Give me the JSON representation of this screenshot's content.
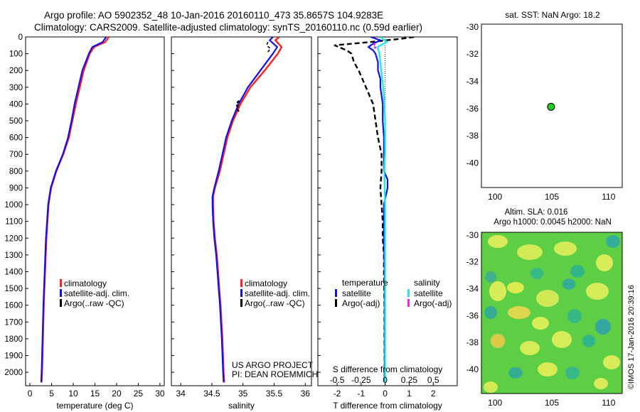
{
  "header": {
    "line1": "Argo profile: AO 5902352_48 10-Jan-2016 20160110_473 35.8657S 104.9283E",
    "line2": "Climatology: CARS2009. Satellite-adjusted climatology: synTS_20160110.nc (0.59d earlier)"
  },
  "colors": {
    "climatology": "#ff2020",
    "satellite": "#1010ee",
    "argo": "#000000",
    "sal_satellite": "#22e8f0",
    "sal_argo": "#ee22ee",
    "float_marker": "#22cc22"
  },
  "watermark": "©IMOS 17-Jan-2016 20:39:16",
  "chart_data": [
    {
      "id": "temperature",
      "type": "line",
      "xlabel": "temperature (deg C)",
      "ylabel": "",
      "xlim": [
        -1,
        31
      ],
      "ylim": [
        2080,
        0
      ],
      "xticks": [
        0,
        5,
        10,
        15,
        20,
        25,
        30
      ],
      "yticks": [
        0,
        100,
        200,
        300,
        400,
        500,
        600,
        700,
        800,
        900,
        1000,
        1100,
        1200,
        1300,
        1400,
        1500,
        1600,
        1700,
        1800,
        1900,
        2000
      ],
      "legend": [
        "climatology",
        "satellite-adj. clim.",
        "Argo(..raw -QC)"
      ],
      "series": [
        {
          "name": "climatology",
          "depth": [
            0,
            30,
            60,
            100,
            200,
            300,
            400,
            500,
            600,
            700,
            800,
            900,
            1000,
            1200,
            1400,
            1600,
            1800,
            2000,
            2060
          ],
          "values": [
            18.2,
            17.4,
            14.8,
            13.8,
            12.4,
            11.5,
            10.6,
            9.8,
            9.0,
            7.7,
            6.1,
            4.9,
            4.3,
            3.8,
            3.5,
            3.2,
            3.0,
            2.8,
            2.7
          ]
        },
        {
          "name": "satellite-adj. clim.",
          "depth": [
            0,
            30,
            60,
            100,
            200,
            300,
            400,
            500,
            600,
            700,
            800,
            900,
            1000,
            1200,
            1400,
            1600,
            1800,
            2000,
            2060
          ],
          "values": [
            17.6,
            16.8,
            14.4,
            13.6,
            12.1,
            11.2,
            10.3,
            9.6,
            8.8,
            7.6,
            6.0,
            4.8,
            4.2,
            3.7,
            3.4,
            3.1,
            2.9,
            2.7,
            2.6
          ]
        }
      ]
    },
    {
      "id": "salinity",
      "type": "line",
      "xlabel": "salinity",
      "xlim": [
        33.85,
        36.1
      ],
      "ylim": [
        2080,
        0
      ],
      "xticks": [
        34,
        34.5,
        35,
        35.5,
        36
      ],
      "legend": [
        "climatology",
        "satellite-adj. clim.",
        "Argo(..raw -QC)"
      ],
      "annotation": [
        "US ARGO PROJECT",
        "PI: DEAN ROEMMICH"
      ],
      "series": [
        {
          "name": "climatology",
          "depth": [
            0,
            20,
            60,
            100,
            200,
            300,
            400,
            500,
            600,
            700,
            800,
            900,
            950,
            1000,
            1100,
            1200,
            1300,
            1400,
            1500,
            1600,
            1800,
            2000,
            2060
          ],
          "values": [
            35.58,
            35.52,
            35.62,
            35.56,
            35.35,
            35.12,
            34.96,
            34.84,
            34.75,
            34.69,
            34.63,
            34.55,
            34.52,
            34.52,
            34.53,
            34.55,
            34.58,
            34.6,
            34.62,
            34.64,
            34.67,
            34.69,
            34.7
          ]
        },
        {
          "name": "satellite-adj. clim.",
          "depth": [
            0,
            20,
            60,
            100,
            200,
            300,
            400,
            500,
            600,
            700,
            800,
            900,
            950,
            1000,
            1100,
            1200,
            1300,
            1400,
            1500,
            1600,
            1800,
            2000,
            2060
          ],
          "values": [
            35.48,
            35.43,
            35.55,
            35.48,
            35.28,
            35.08,
            34.93,
            34.82,
            34.73,
            34.67,
            34.61,
            34.54,
            34.51,
            34.51,
            34.52,
            34.54,
            34.57,
            34.59,
            34.61,
            34.63,
            34.66,
            34.68,
            34.69
          ]
        },
        {
          "name": "Argo",
          "depth": [
            380,
            390,
            400,
            410,
            420,
            430,
            440,
            450
          ],
          "values": [
            34.94,
            34.91,
            34.93,
            34.9,
            34.92,
            34.9,
            34.93,
            34.91
          ]
        },
        {
          "name": "Argo-top",
          "depth": [
            30,
            50,
            70,
            90
          ],
          "values": [
            35.4,
            35.38,
            35.44,
            35.4
          ]
        }
      ]
    },
    {
      "id": "difference",
      "type": "line",
      "xlabel": "T difference from climatology",
      "xlabel2": "S difference from climatology",
      "xlim": [
        -2.8,
        3.0
      ],
      "ylim": [
        2080,
        0
      ],
      "xticks": [
        -2,
        -1,
        0,
        1,
        2
      ],
      "xticks_s": [
        "-0.5",
        "-0.25",
        "0",
        "0.25",
        "0.5"
      ],
      "legend_temperature": [
        "temperature",
        "satellite",
        "Argo(-adj)"
      ],
      "legend_salinity": [
        "salinity",
        "satellite",
        "Argo(-adj)"
      ],
      "series": [
        {
          "name": "T satellite",
          "depth": [
            0,
            20,
            40,
            60,
            80,
            100,
            150,
            200,
            250,
            300,
            400,
            500,
            600,
            800,
            850,
            900,
            1000,
            1100,
            1200,
            1400,
            1600,
            1800,
            2000,
            2060
          ],
          "values": [
            -0.6,
            -0.2,
            -0.5,
            -0.7,
            -0.5,
            -0.4,
            -0.3,
            -0.3,
            -0.2,
            -0.2,
            -0.1,
            -0.1,
            -0.05,
            -0.05,
            0.1,
            0.1,
            -0.05,
            -0.05,
            -0.05,
            -0.02,
            -0.02,
            -0.02,
            -0.02,
            -0.02
          ]
        },
        {
          "name": "T Argo",
          "depth": [
            0,
            10,
            30,
            50,
            80,
            100,
            150,
            200,
            300,
            400,
            500,
            600,
            700,
            800,
            900,
            1000,
            1100,
            1200,
            1300,
            1400,
            1600,
            1800,
            2000,
            2060
          ],
          "values": [
            1.2,
            0.7,
            -0.6,
            -2.1,
            -1.6,
            -1.4,
            -1.3,
            -1.1,
            -0.8,
            -0.5,
            -0.4,
            -0.3,
            -0.15,
            -0.15,
            -0.2,
            -0.15,
            -0.1,
            -0.1,
            -0.05,
            -0.05,
            -0.03,
            -0.03,
            -0.02,
            -0.02
          ]
        },
        {
          "name": "S satellite",
          "depth": [
            0,
            30,
            60,
            100,
            200,
            300,
            400,
            500,
            600,
            700,
            800,
            1000,
            1200,
            1500,
            1800,
            2000,
            2060
          ],
          "values": [
            -0.05,
            0.02,
            -0.08,
            -0.06,
            -0.04,
            -0.02,
            -0.01,
            0.0,
            0.0,
            0.0,
            -0.01,
            0.0,
            0.0,
            0.0,
            0.0,
            0.0,
            0.0
          ]
        },
        {
          "name": "S Argo",
          "depth": [
            40,
            55,
            70
          ],
          "values": [
            -0.12,
            -0.1,
            -0.11
          ]
        }
      ]
    },
    {
      "id": "sst-map",
      "type": "scatter",
      "title": "sat. SST: NaN Argo: 18.2",
      "xlim": [
        98.8,
        111.2
      ],
      "ylim": [
        -41.8,
        -29.8
      ],
      "xticks": [
        100,
        105,
        110
      ],
      "yticks": [
        -30,
        -32,
        -34,
        -36,
        -38,
        -40
      ],
      "points": [
        {
          "x": 104.93,
          "y": -35.87
        }
      ]
    },
    {
      "id": "sla-map",
      "type": "heatmap",
      "title_line1": "Altim. SLA: 0.016",
      "title_line2": "Argo h1000: 0.0045 h2000: NaN",
      "xlim": [
        98.8,
        111.2
      ],
      "ylim": [
        -41.8,
        -29.8
      ],
      "xticks": [
        100,
        105,
        110
      ],
      "yticks": [
        -30,
        -32,
        -34,
        -36,
        -38,
        -40
      ]
    }
  ]
}
